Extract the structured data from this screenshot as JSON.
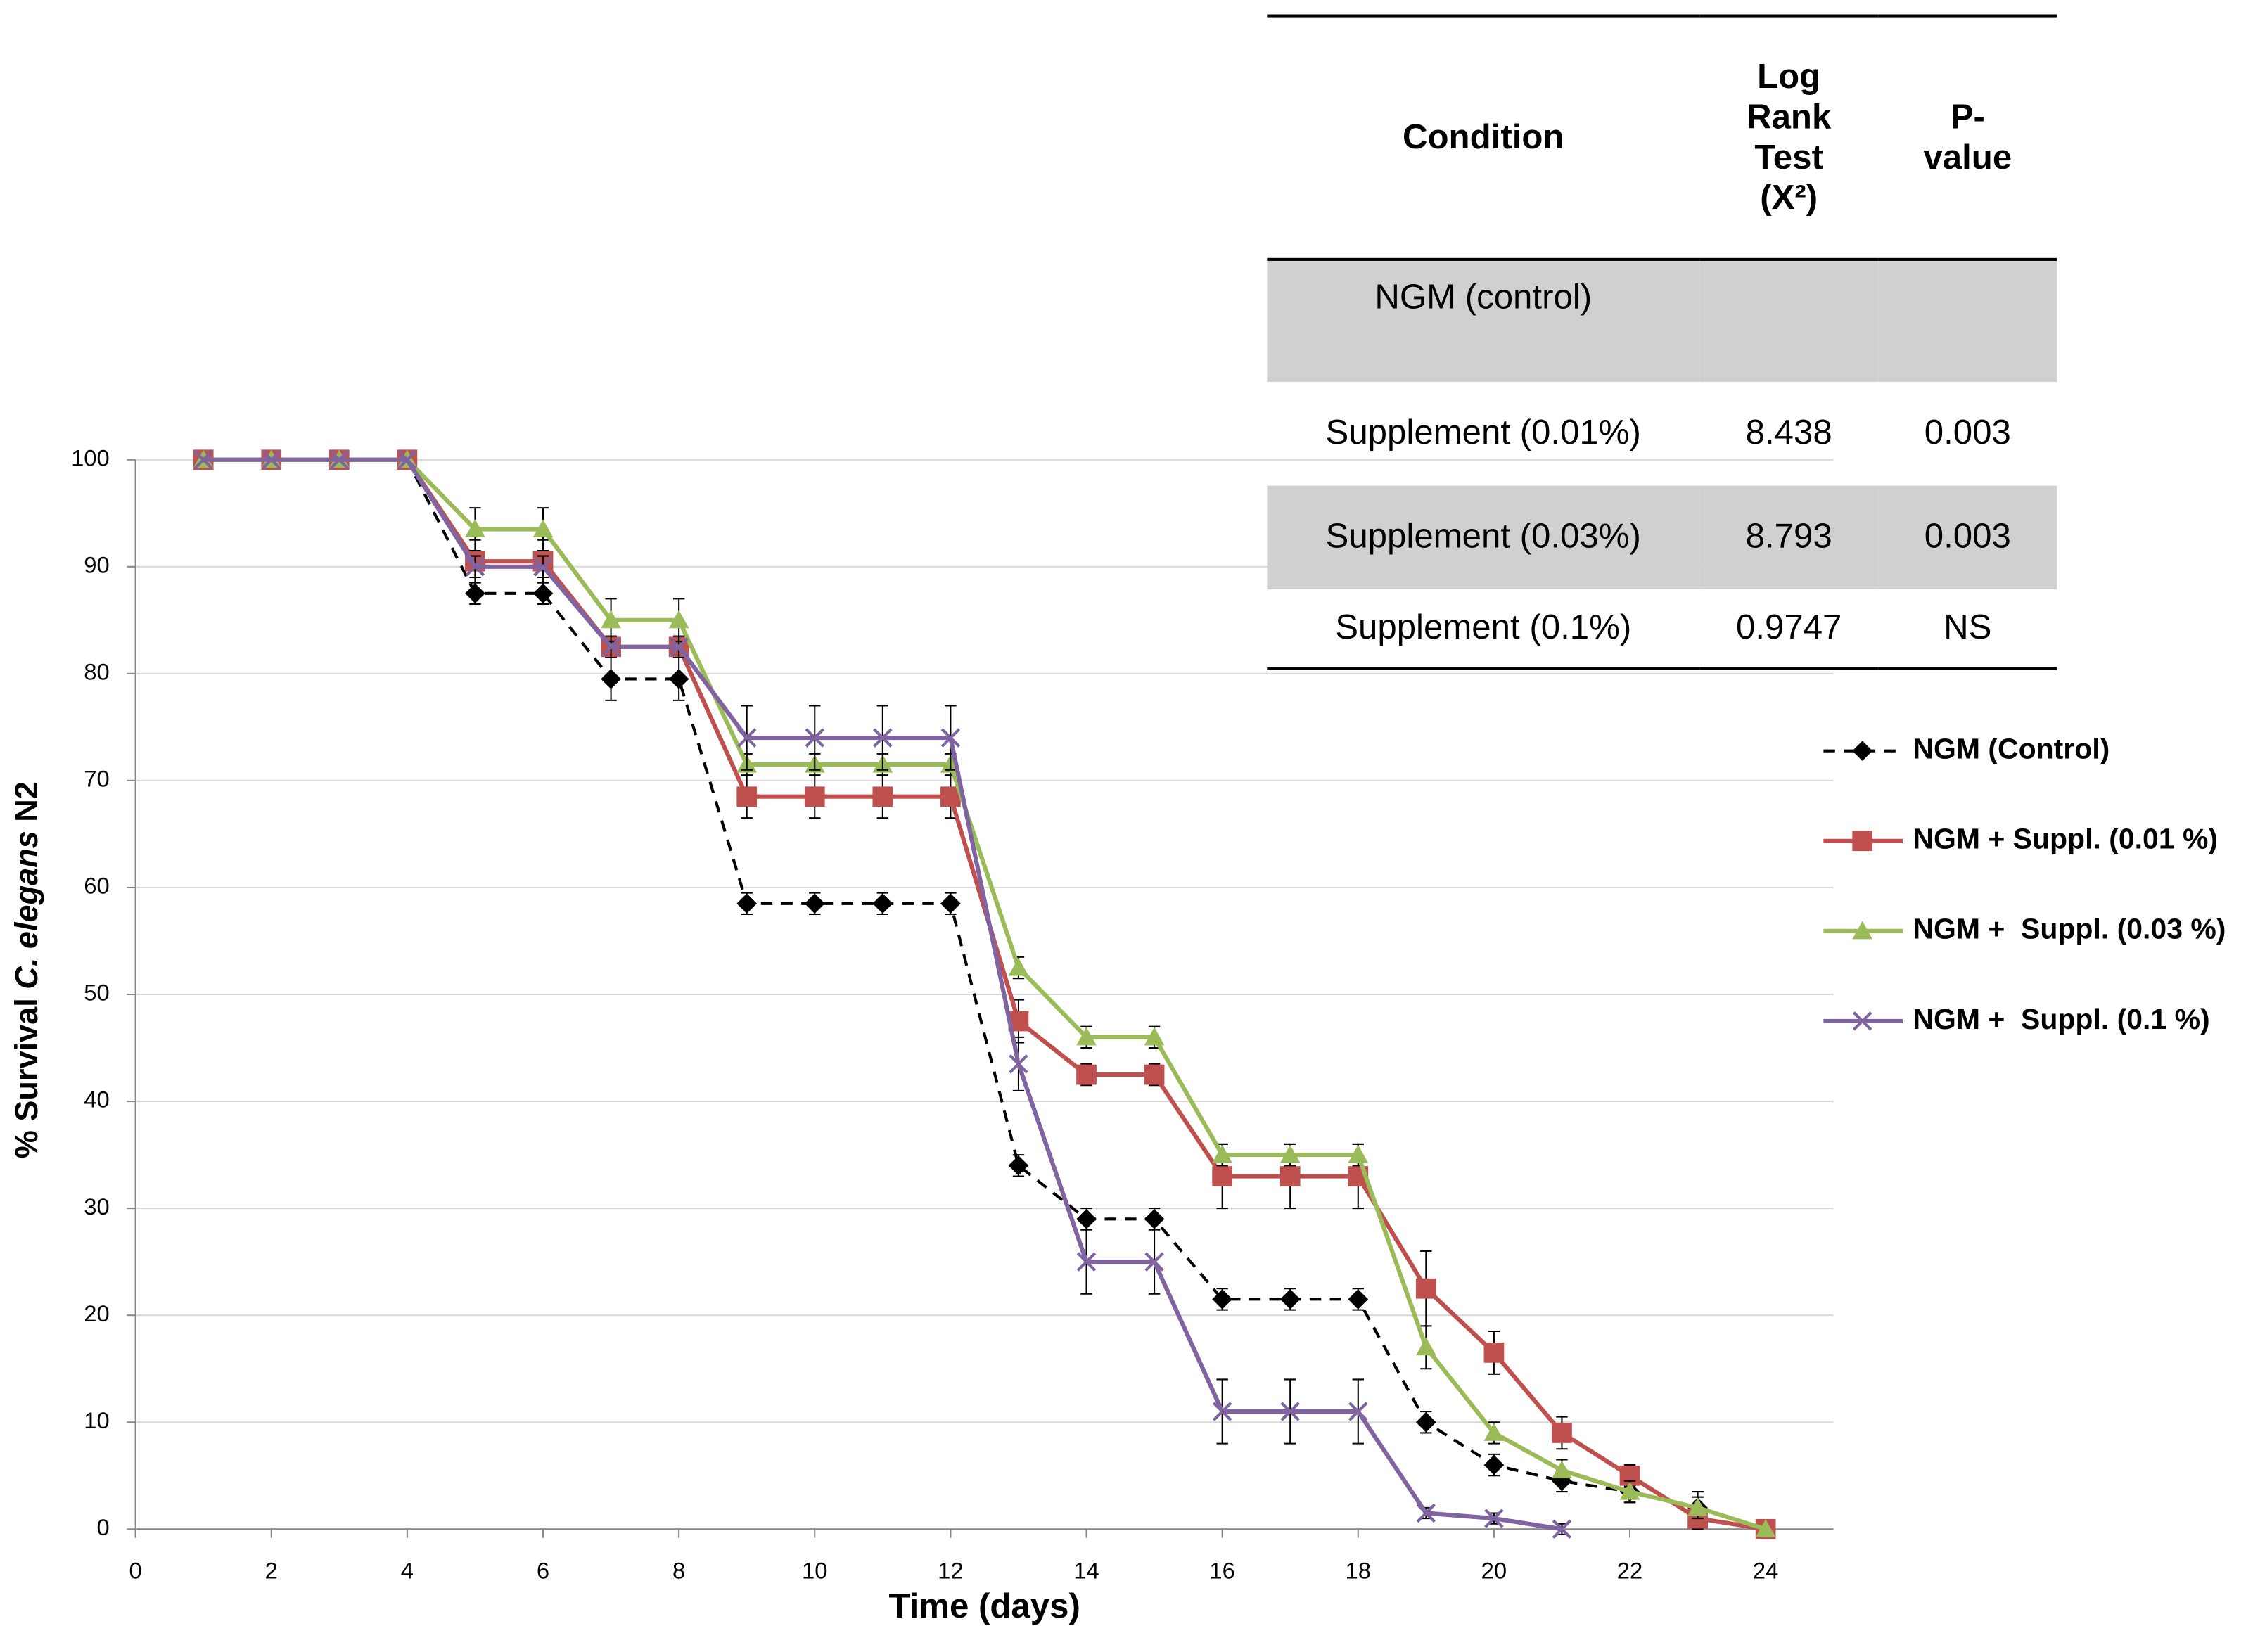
{
  "chart_data": {
    "type": "line",
    "x_label": "Time (days)",
    "y_label": {
      "prefix": "% Survival",
      "italic": "C. elegans",
      "suffix": "N2"
    },
    "x": [
      1,
      2,
      3,
      4,
      5,
      6,
      7,
      8,
      9,
      10,
      11,
      12,
      13,
      14,
      15,
      16,
      17,
      18,
      19,
      20,
      21,
      22,
      23,
      24
    ],
    "xlim": [
      0,
      25
    ],
    "xticks": [
      0,
      2,
      4,
      6,
      8,
      10,
      12,
      14,
      16,
      18,
      20,
      22,
      24
    ],
    "ylim": [
      0,
      100
    ],
    "yticks": [
      0,
      10,
      20,
      30,
      40,
      50,
      60,
      70,
      80,
      90,
      100
    ],
    "grid": true,
    "legend": "right",
    "series": [
      {
        "name": "NGM (Control)",
        "color": "#000000",
        "marker": "diamond",
        "dashed": true,
        "values": [
          100,
          100,
          100,
          100,
          87.5,
          87.5,
          79.5,
          79.5,
          58.5,
          58.5,
          58.5,
          58.5,
          34,
          29,
          29,
          21.5,
          21.5,
          21.5,
          10,
          6,
          4.5,
          3.5,
          2,
          0
        ],
        "errors": [
          0,
          0,
          0,
          0,
          1,
          1,
          2,
          2,
          1,
          1,
          1,
          1,
          1,
          1,
          1,
          1,
          1,
          1,
          1,
          1,
          1,
          1,
          1.5,
          0
        ]
      },
      {
        "name": "NGM + Suppl. (0.01 %)",
        "color": "#c0504d",
        "marker": "square",
        "dashed": false,
        "values": [
          100,
          100,
          100,
          100,
          90.5,
          90.5,
          82.5,
          82.5,
          68.5,
          68.5,
          68.5,
          68.5,
          47.5,
          42.5,
          42.5,
          33,
          33,
          33,
          22.5,
          16.5,
          9,
          5,
          1,
          0
        ],
        "errors": [
          0,
          0,
          0,
          0,
          2,
          2,
          1,
          1,
          2,
          2,
          2,
          2,
          2,
          1,
          1,
          3,
          3,
          3,
          3.5,
          2,
          1.5,
          1,
          1,
          0
        ]
      },
      {
        "name": "NGM +  Suppl. (0.03 %)",
        "color": "#9bbb59",
        "marker": "triangle",
        "dashed": false,
        "values": [
          100,
          100,
          100,
          100,
          93.5,
          93.5,
          85,
          85,
          71.5,
          71.5,
          71.5,
          71.5,
          52.5,
          46,
          46,
          35,
          35,
          35,
          17,
          9,
          5.5,
          3.5,
          2,
          0
        ],
        "errors": [
          0,
          0,
          0,
          0,
          2,
          2,
          2,
          2,
          1,
          1,
          1,
          1,
          1,
          1,
          1,
          1,
          1,
          1,
          2,
          1,
          1,
          1,
          1,
          0
        ]
      },
      {
        "name": "NGM +  Suppl. (0.1 %)",
        "color": "#8064a2",
        "marker": "x",
        "dashed": false,
        "values": [
          100,
          100,
          100,
          100,
          90,
          90,
          82.5,
          82.5,
          74,
          74,
          74,
          74,
          43.5,
          25,
          25,
          11,
          11,
          11,
          1.5,
          1,
          0,
          null,
          null,
          null
        ],
        "errors": [
          0,
          0,
          0,
          0,
          1,
          1,
          1,
          1,
          3,
          3,
          3,
          3,
          2.5,
          3,
          3,
          3,
          3,
          3,
          0.5,
          0.5,
          0.5,
          null,
          null,
          null
        ]
      }
    ]
  },
  "table": {
    "header": [
      "Condition",
      "Log Rank Test (X²)",
      "P-value"
    ],
    "rows": [
      [
        "NGM (control)"
      ],
      [
        "Supplement (0.01%)",
        "8.438",
        "0.003"
      ],
      [
        "Supplement (0.03%)",
        "8.793",
        "0.003"
      ],
      [
        "Supplement (0.1%)",
        "0.9747",
        "NS"
      ]
    ]
  }
}
